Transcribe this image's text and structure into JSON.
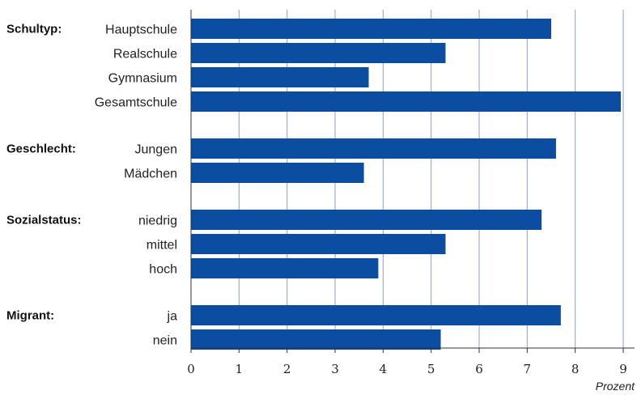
{
  "chart_data": {
    "type": "bar",
    "orientation": "horizontal",
    "xlabel": "Prozent",
    "xlim": [
      0,
      9
    ],
    "xticks": [
      0,
      1,
      2,
      3,
      4,
      5,
      6,
      7,
      8,
      9
    ],
    "xtick_labels": [
      "0",
      "1",
      "2",
      "3",
      "4",
      "5",
      "6",
      "7",
      "8",
      "9"
    ],
    "grid": true,
    "bar_color": "#0b4da1",
    "grid_color": "#8ca0c8",
    "groups": [
      {
        "name": "Schultyp:",
        "categories": [
          "Hauptschule",
          "Realschule",
          "Gymnasium",
          "Gesamtschule"
        ],
        "values": [
          7.5,
          5.3,
          3.7,
          8.95
        ]
      },
      {
        "name": "Geschlecht:",
        "categories": [
          "Jungen",
          "Mädchen"
        ],
        "values": [
          7.6,
          3.6
        ]
      },
      {
        "name": "Sozialstatus:",
        "categories": [
          "niedrig",
          "mittel",
          "hoch"
        ],
        "values": [
          7.3,
          5.3,
          3.9
        ]
      },
      {
        "name": "Migrant:",
        "categories": [
          "ja",
          "nein"
        ],
        "values": [
          7.7,
          5.2
        ]
      }
    ]
  }
}
